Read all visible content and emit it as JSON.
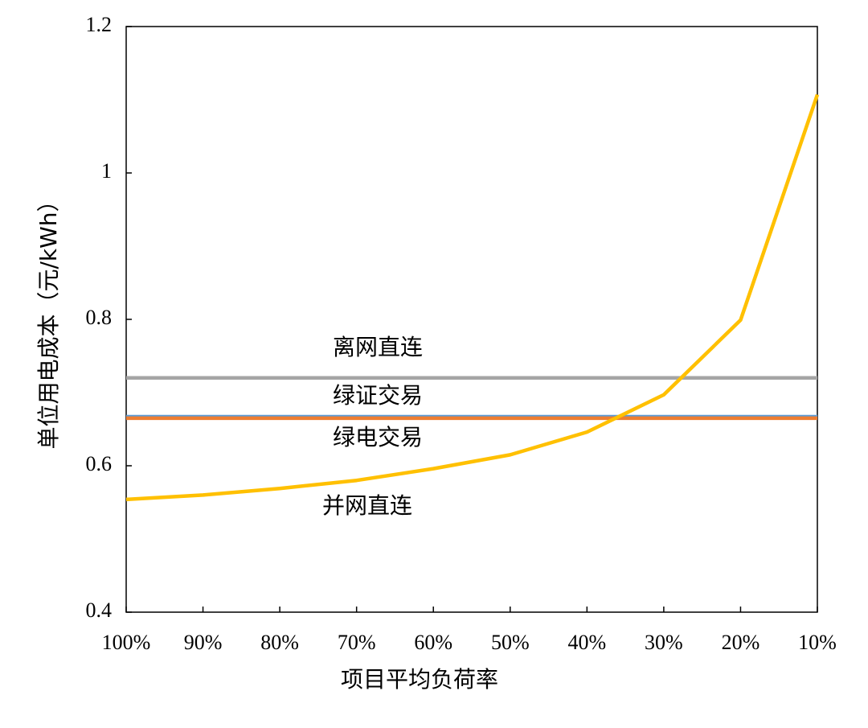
{
  "chart_data": {
    "type": "line",
    "y_label": "单位用电成本（元/kWh）",
    "x_label": "项目平均负荷率",
    "categories": [
      "100%",
      "90%",
      "80%",
      "70%",
      "60%",
      "50%",
      "40%",
      "30%",
      "20%",
      "10%"
    ],
    "series": [
      {
        "name": "离网直连",
        "color": "#a5a5a5",
        "values": [
          0.72,
          0.72,
          0.72,
          0.72,
          0.72,
          0.72,
          0.72,
          0.72,
          0.72,
          0.72
        ]
      },
      {
        "name": "绿证交易",
        "color": "#5b9bd5",
        "values": [
          0.667,
          0.667,
          0.667,
          0.667,
          0.667,
          0.667,
          0.667,
          0.667,
          0.667,
          0.667
        ]
      },
      {
        "name": "绿电交易",
        "color": "#ed7d31",
        "values": [
          0.665,
          0.665,
          0.665,
          0.665,
          0.665,
          0.665,
          0.665,
          0.665,
          0.665,
          0.665
        ]
      },
      {
        "name": "并网直连",
        "color": "#ffc000",
        "values": [
          0.554,
          0.56,
          0.569,
          0.58,
          0.596,
          0.615,
          0.646,
          0.697,
          0.799,
          1.107
        ]
      }
    ],
    "ylim": [
      0.4,
      1.2
    ],
    "yticks": [
      0.4,
      0.6,
      0.8,
      1,
      1.2
    ],
    "grid": false
  }
}
